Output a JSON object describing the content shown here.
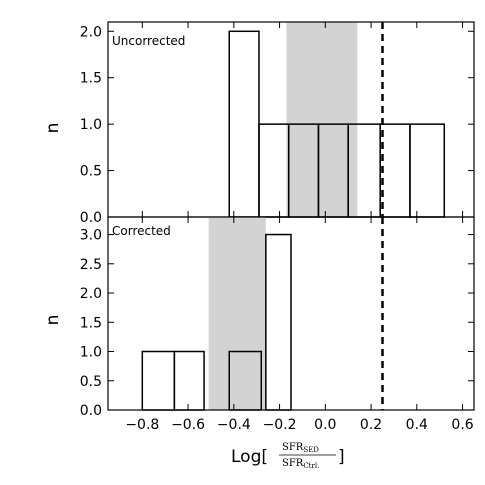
{
  "chart_data": [
    {
      "type": "histogram",
      "panel_label": "Uncorrected",
      "ylabel": "n",
      "xlim": [
        -0.95,
        0.65
      ],
      "ylim": [
        0,
        2.1
      ],
      "yticks": [
        "0.0",
        "0.5",
        "1.0",
        "1.5",
        "2.0"
      ],
      "ytick_values": [
        0.0,
        0.5,
        1.0,
        1.5,
        2.0
      ],
      "bins": [
        {
          "x0": -0.42,
          "x1": -0.29,
          "count": 2
        },
        {
          "x0": -0.29,
          "x1": -0.16,
          "count": 1
        },
        {
          "x0": -0.16,
          "x1": -0.03,
          "count": 1
        },
        {
          "x0": -0.03,
          "x1": 0.1,
          "count": 1
        },
        {
          "x0": 0.1,
          "x1": 0.24,
          "count": 1
        },
        {
          "x0": 0.24,
          "x1": 0.37,
          "count": 1
        },
        {
          "x0": 0.37,
          "x1": 0.52,
          "count": 1
        }
      ],
      "shaded_band": {
        "x0": -0.17,
        "x1": 0.14
      },
      "reference_line_x": 0.25
    },
    {
      "type": "histogram",
      "panel_label": "Corrected",
      "ylabel": "n",
      "xlabel": "Log[SFR_SED / SFR_Ctrl.]",
      "xlim": [
        -0.95,
        0.65
      ],
      "ylim": [
        0,
        3.3
      ],
      "yticks": [
        "0.0",
        "0.5",
        "1.0",
        "1.5",
        "2.0",
        "2.5",
        "3.0"
      ],
      "ytick_values": [
        0.0,
        0.5,
        1.0,
        1.5,
        2.0,
        2.5,
        3.0
      ],
      "xticks": [
        "−0.8",
        "−0.6",
        "−0.4",
        "−0.2",
        "0.0",
        "0.2",
        "0.4",
        "0.6"
      ],
      "xtick_values": [
        -0.8,
        -0.6,
        -0.4,
        -0.2,
        0.0,
        0.2,
        0.4,
        0.6
      ],
      "bins": [
        {
          "x0": -0.8,
          "x1": -0.66,
          "count": 1
        },
        {
          "x0": -0.66,
          "x1": -0.53,
          "count": 1
        },
        {
          "x0": -0.42,
          "x1": -0.28,
          "count": 1
        },
        {
          "x0": -0.26,
          "x1": -0.15,
          "count": 3
        }
      ],
      "shaded_band": {
        "x0": -0.51,
        "x1": -0.26
      },
      "reference_line_x": 0.25
    }
  ],
  "xlabel_parts": {
    "prefix": "Log[",
    "numerator": "SFR",
    "numerator_sub": "SED",
    "denominator": "SFR",
    "denominator_sub": "Ctrl.",
    "suffix": "]"
  },
  "colors": {
    "band": "#d3d3d3",
    "bar_edge": "#000000",
    "bar_fill": "#ffffff",
    "refline": "#000000"
  }
}
